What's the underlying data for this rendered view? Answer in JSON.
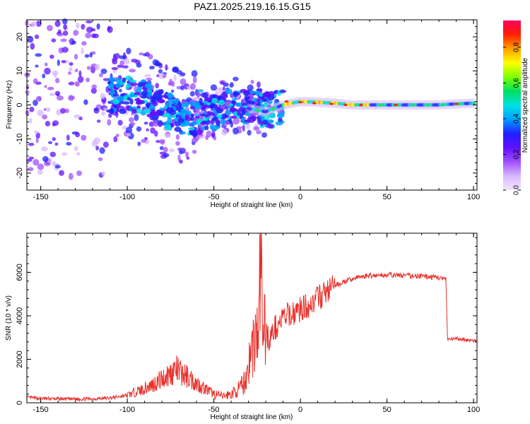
{
  "title": "PAZ1.2025.219.16.15.G15",
  "colorbar": {
    "label": "Normalized spectral amplitude",
    "ticks": [
      "0.0",
      "0.2",
      "0.4",
      "0.6",
      "0.8"
    ],
    "range": [
      0,
      0.95
    ],
    "colormap": [
      "#f0e6ff",
      "#d8b8ff",
      "#a050ff",
      "#6010ff",
      "#2020ff",
      "#00a0ff",
      "#00e0e0",
      "#00e060",
      "#80ff00",
      "#ffff00",
      "#ffa000",
      "#ff2000",
      "#ff0060"
    ]
  },
  "chart_data": [
    {
      "type": "heatmap",
      "xlabel": "Height of straight line (km)",
      "ylabel": "Frequency (Hz)",
      "xlim": [
        -158,
        102
      ],
      "ylim": [
        -25,
        25
      ],
      "xticks": [
        "-150",
        "-100",
        "-50",
        "0",
        "50",
        "100"
      ],
      "yticks": [
        "-20",
        "-10",
        "0",
        "10",
        "20"
      ],
      "ridge": {
        "x": [
          -110,
          -100,
          -90,
          -80,
          -70,
          -60,
          -50,
          -40,
          -30,
          -20,
          -10,
          0,
          10,
          20,
          30,
          40,
          50,
          60,
          70,
          80,
          90,
          100
        ],
        "frequency": [
          3,
          3,
          2,
          -1,
          -3,
          -4,
          -2,
          0,
          -1,
          -2,
          0,
          1,
          0.8,
          0.5,
          0,
          0,
          0,
          0,
          0,
          0,
          0.3,
          0.5
        ]
      }
    },
    {
      "type": "line",
      "xlabel": "Height of straight line (km)",
      "ylabel": "SNR (10 * v/v)",
      "xlim": [
        -158,
        102
      ],
      "ylim": [
        0,
        7800
      ],
      "xticks": [
        "-150",
        "-100",
        "-50",
        "0",
        "50",
        "100"
      ],
      "yticks": [
        "0",
        "2000",
        "4000",
        "6000"
      ],
      "color": "#e8302a",
      "series": [
        {
          "x": [
            -158,
            -150,
            -140,
            -130,
            -120,
            -110,
            -105,
            -100,
            -95,
            -90,
            -85,
            -80,
            -75,
            -72,
            -70,
            -65,
            -60,
            -55,
            -50,
            -45,
            -40,
            -35,
            -32,
            -30,
            -28,
            -26,
            -24,
            -23,
            -22,
            -20,
            -18,
            -15,
            -10,
            -5,
            0,
            5,
            10,
            15,
            20,
            25,
            30,
            35,
            40,
            50,
            60,
            70,
            80,
            84,
            85,
            90,
            95,
            102
          ],
          "y": [
            250,
            200,
            180,
            170,
            180,
            220,
            280,
            350,
            500,
            650,
            850,
            1100,
            1350,
            1550,
            1400,
            1200,
            900,
            650,
            400,
            300,
            400,
            650,
            1000,
            1700,
            2500,
            3000,
            3200,
            7800,
            3800,
            3300,
            2900,
            3400,
            3900,
            4100,
            4300,
            4500,
            4800,
            5100,
            5400,
            5550,
            5700,
            5800,
            5850,
            5880,
            5860,
            5820,
            5760,
            5680,
            2900,
            2950,
            2900,
            2820
          ]
        }
      ]
    }
  ]
}
